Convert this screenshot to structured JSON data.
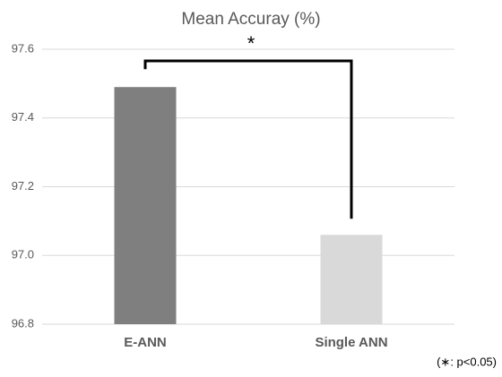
{
  "chart_data": {
    "type": "bar",
    "title": "Mean Accuray (%)",
    "categories": [
      "E-ANN",
      "Single ANN"
    ],
    "values": [
      97.49,
      97.06
    ],
    "colors": [
      "#7f7f7f",
      "#d9d9d9"
    ],
    "ylim": [
      96.8,
      97.6
    ],
    "yticks": [
      96.8,
      {
        "value": 97,
        "label": "97.0"
      },
      97.2,
      97.4,
      97.6
    ],
    "grid": true,
    "significance_label": "*",
    "note": "(∗: p<0.05)"
  }
}
